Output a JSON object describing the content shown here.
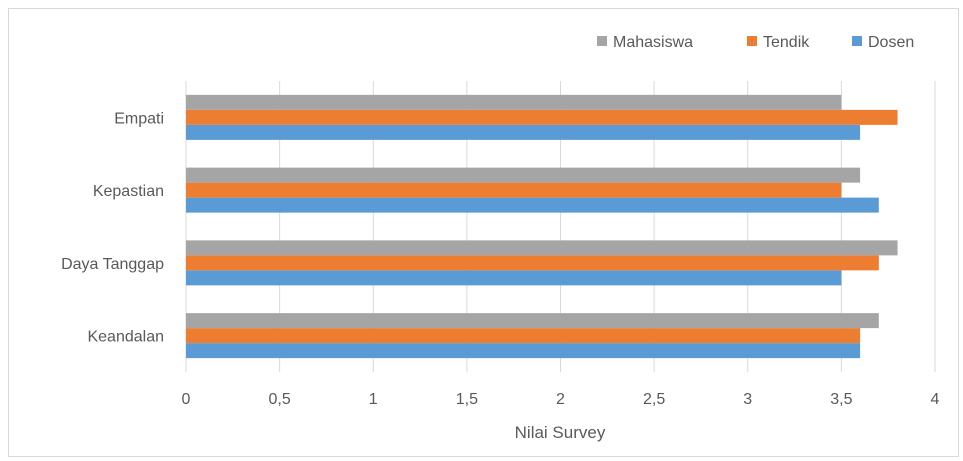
{
  "chart_data": {
    "type": "bar",
    "orientation": "horizontal",
    "categories": [
      "Keandalan",
      "Daya Tanggap",
      "Kepastian",
      "Empati"
    ],
    "series": [
      {
        "name": "Dosen",
        "color": "#5b9bd5",
        "values": [
          3.6,
          3.5,
          3.7,
          3.6
        ]
      },
      {
        "name": "Tendik",
        "color": "#ed7d31",
        "values": [
          3.6,
          3.7,
          3.5,
          3.8
        ]
      },
      {
        "name": "Mahasiswa",
        "color": "#a5a5a5",
        "values": [
          3.7,
          3.8,
          3.6,
          3.5
        ]
      }
    ],
    "xlabel": "Nilai Survey",
    "xlim": [
      0,
      4
    ],
    "xticks": [
      "0",
      "0,5",
      "1",
      "1,5",
      "2",
      "2,5",
      "3",
      "3,5",
      "4"
    ],
    "xtick_values": [
      0,
      0.5,
      1,
      1.5,
      2,
      2.5,
      3,
      3.5,
      4
    ],
    "legend_order": [
      "Mahasiswa",
      "Tendik",
      "Dosen"
    ],
    "legend_position": "top-right",
    "grid": "vertical"
  }
}
